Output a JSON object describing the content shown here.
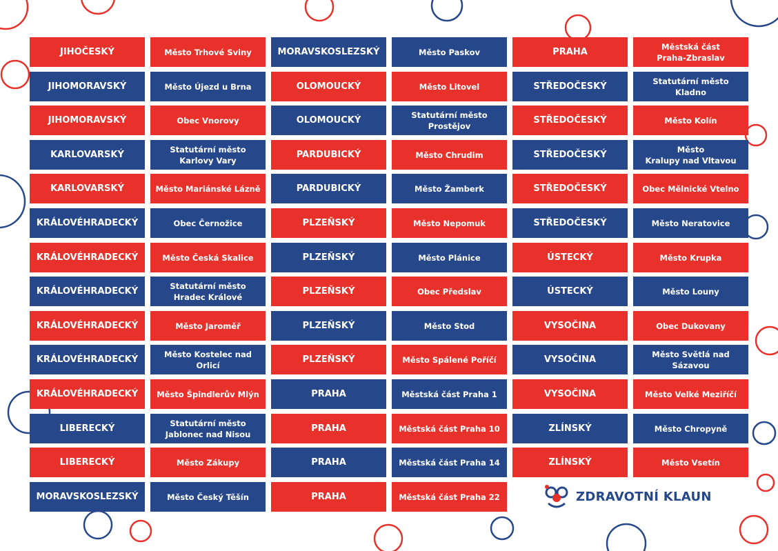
{
  "colors": {
    "red": "#e8312b",
    "blue": "#26488a"
  },
  "columns": [
    [
      {
        "text": "JIHOČESKÝ",
        "color": "red"
      },
      {
        "text": "JIHOMORAVSKÝ",
        "color": "blue"
      },
      {
        "text": "JIHOMORAVSKÝ",
        "color": "red"
      },
      {
        "text": "KARLOVARSKÝ",
        "color": "blue"
      },
      {
        "text": "KARLOVARSKÝ",
        "color": "red"
      },
      {
        "text": "KRÁLOVÉHRADECKÝ",
        "color": "blue"
      },
      {
        "text": "KRÁLOVÉHRADECKÝ",
        "color": "red"
      },
      {
        "text": "KRÁLOVÉHRADECKÝ",
        "color": "blue"
      },
      {
        "text": "KRÁLOVÉHRADECKÝ",
        "color": "red"
      },
      {
        "text": "KRÁLOVÉHRADECKÝ",
        "color": "blue"
      },
      {
        "text": "KRÁLOVÉHRADECKÝ",
        "color": "red"
      },
      {
        "text": "LIBERECKÝ",
        "color": "blue"
      },
      {
        "text": "LIBERECKÝ",
        "color": "red"
      },
      {
        "text": "MORAVSKOSLEZSKÝ",
        "color": "blue"
      }
    ],
    [
      {
        "text": "Město Trhové Sviny",
        "color": "red"
      },
      {
        "text": "Město Újezd u Brna",
        "color": "blue"
      },
      {
        "text": "Obec Vnorovy",
        "color": "red"
      },
      {
        "text": "Statutární město\nKarlovy Vary",
        "color": "blue"
      },
      {
        "text": "Město Mariánské Lázně",
        "color": "red"
      },
      {
        "text": "Obec Černožice",
        "color": "blue"
      },
      {
        "text": "Město Česká Skalice",
        "color": "red"
      },
      {
        "text": "Statutární město\nHradec Králové",
        "color": "blue"
      },
      {
        "text": "Město Jaroměř",
        "color": "red"
      },
      {
        "text": "Město Kostelec nad Orlicí",
        "color": "blue"
      },
      {
        "text": "Město Špindlerův Mlýn",
        "color": "red"
      },
      {
        "text": "Statutární město\nJablonec nad Nisou",
        "color": "blue"
      },
      {
        "text": "Město Zákupy",
        "color": "red"
      },
      {
        "text": "Město Český Těšín",
        "color": "blue"
      }
    ],
    [
      {
        "text": "MORAVSKOSLEZSKÝ",
        "color": "blue"
      },
      {
        "text": "OLOMOUCKÝ",
        "color": "red"
      },
      {
        "text": "OLOMOUCKÝ",
        "color": "blue"
      },
      {
        "text": "PARDUBICKÝ",
        "color": "red"
      },
      {
        "text": "PARDUBICKÝ",
        "color": "blue"
      },
      {
        "text": "PLZEŇSKÝ",
        "color": "red"
      },
      {
        "text": "PLZEŇSKÝ",
        "color": "blue"
      },
      {
        "text": "PLZEŇSKÝ",
        "color": "red"
      },
      {
        "text": "PLZEŇSKÝ",
        "color": "blue"
      },
      {
        "text": "PLZEŇSKÝ",
        "color": "red"
      },
      {
        "text": "PRAHA",
        "color": "blue"
      },
      {
        "text": "PRAHA",
        "color": "red"
      },
      {
        "text": "PRAHA",
        "color": "blue"
      },
      {
        "text": "PRAHA",
        "color": "red"
      }
    ],
    [
      {
        "text": "Město Paskov",
        "color": "blue"
      },
      {
        "text": "Město Litovel",
        "color": "red"
      },
      {
        "text": "Statutární město\nProstějov",
        "color": "blue"
      },
      {
        "text": "Město Chrudim",
        "color": "red"
      },
      {
        "text": "Město Žamberk",
        "color": "blue"
      },
      {
        "text": "Město Nepomuk",
        "color": "red"
      },
      {
        "text": "Město Plánice",
        "color": "blue"
      },
      {
        "text": "Obec Předslav",
        "color": "red"
      },
      {
        "text": "Město Stod",
        "color": "blue"
      },
      {
        "text": "Město Spálené Poříčí",
        "color": "red"
      },
      {
        "text": "Městská část Praha 1",
        "color": "blue"
      },
      {
        "text": "Městská část Praha 10",
        "color": "red"
      },
      {
        "text": "Městská část Praha 14",
        "color": "blue"
      },
      {
        "text": "Městská část Praha 22",
        "color": "red"
      }
    ],
    [
      {
        "text": "PRAHA",
        "color": "red"
      },
      {
        "text": "STŘEDOČESKÝ",
        "color": "blue"
      },
      {
        "text": "STŘEDOČESKÝ",
        "color": "red"
      },
      {
        "text": "STŘEDOČESKÝ",
        "color": "blue"
      },
      {
        "text": "STŘEDOČESKÝ",
        "color": "red"
      },
      {
        "text": "STŘEDOČESKÝ",
        "color": "blue"
      },
      {
        "text": "ÚSTECKÝ",
        "color": "red"
      },
      {
        "text": "ÚSTECKÝ",
        "color": "blue"
      },
      {
        "text": "VYSOČINA",
        "color": "red"
      },
      {
        "text": "VYSOČINA",
        "color": "blue"
      },
      {
        "text": "VYSOČINA",
        "color": "red"
      },
      {
        "text": "ZLÍNSKÝ",
        "color": "blue"
      },
      {
        "text": "ZLÍNSKÝ",
        "color": "red"
      }
    ],
    [
      {
        "text": "Městská část\nPraha-Zbraslav",
        "color": "red"
      },
      {
        "text": "Statutární město Kladno",
        "color": "blue"
      },
      {
        "text": "Město Kolín",
        "color": "red"
      },
      {
        "text": "Město\nKralupy nad Vltavou",
        "color": "blue"
      },
      {
        "text": "Obec Mělnické Vtelno",
        "color": "red"
      },
      {
        "text": "Město Neratovice",
        "color": "blue"
      },
      {
        "text": "Město Krupka",
        "color": "red"
      },
      {
        "text": "Město Louny",
        "color": "blue"
      },
      {
        "text": "Obec Dukovany",
        "color": "red"
      },
      {
        "text": "Město Světlá nad Sázavou",
        "color": "blue"
      },
      {
        "text": "Město Velké Meziříčí",
        "color": "red"
      },
      {
        "text": "Město Chropyně",
        "color": "blue"
      },
      {
        "text": "Město Vsetín",
        "color": "red"
      }
    ]
  ],
  "logo": {
    "text": "ZDRAVOTNÍ KLAUN"
  }
}
